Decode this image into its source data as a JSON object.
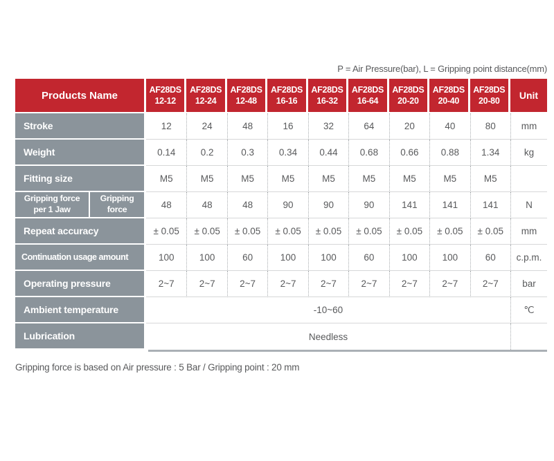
{
  "note_top": "P = Air Pressure(bar), L = Gripping point distance(mm)",
  "note_bottom": "Gripping force is based on Air pressure : 5 Bar / Gripping point : 20 mm",
  "colors": {
    "header_red": "#c2262f",
    "label_gray": "#8b949b",
    "data_text": "#58595b"
  },
  "table": {
    "header": {
      "products_label": "Products Name",
      "unit_label": "Unit",
      "products": [
        {
          "line1": "AF28DS",
          "line2": "12-12"
        },
        {
          "line1": "AF28DS",
          "line2": "12-24"
        },
        {
          "line1": "AF28DS",
          "line2": "12-48"
        },
        {
          "line1": "AF28DS",
          "line2": "16-16"
        },
        {
          "line1": "AF28DS",
          "line2": "16-32"
        },
        {
          "line1": "AF28DS",
          "line2": "16-64"
        },
        {
          "line1": "AF28DS",
          "line2": "20-20"
        },
        {
          "line1": "AF28DS",
          "line2": "20-40"
        },
        {
          "line1": "AF28DS",
          "line2": "20-80"
        }
      ]
    },
    "rows": [
      {
        "label": "Stroke",
        "values": [
          "12",
          "24",
          "48",
          "16",
          "32",
          "64",
          "20",
          "40",
          "80"
        ],
        "unit": "mm"
      },
      {
        "label": "Weight",
        "values": [
          "0.14",
          "0.2",
          "0.3",
          "0.34",
          "0.44",
          "0.68",
          "0.66",
          "0.88",
          "1.34"
        ],
        "unit": "kg"
      },
      {
        "label": "Fitting size",
        "values": [
          "M5",
          "M5",
          "M5",
          "M5",
          "M5",
          "M5",
          "M5",
          "M5",
          "M5"
        ],
        "unit": ""
      },
      {
        "label_main": {
          "line1": "Gripping force",
          "line2": "per 1 Jaw"
        },
        "label_sub": {
          "line1": "Gripping",
          "line2": "force"
        },
        "values": [
          "48",
          "48",
          "48",
          "90",
          "90",
          "90",
          "141",
          "141",
          "141"
        ],
        "unit": "N"
      },
      {
        "label": "Repeat accuracy",
        "values": [
          "± 0.05",
          "± 0.05",
          "± 0.05",
          "± 0.05",
          "± 0.05",
          "± 0.05",
          "± 0.05",
          "± 0.05",
          "± 0.05"
        ],
        "unit": "mm"
      },
      {
        "label": "Continuation usage amount",
        "values": [
          "100",
          "100",
          "60",
          "100",
          "100",
          "60",
          "100",
          "100",
          "60"
        ],
        "unit": "c.p.m."
      },
      {
        "label": "Operating pressure",
        "values": [
          "2~7",
          "2~7",
          "2~7",
          "2~7",
          "2~7",
          "2~7",
          "2~7",
          "2~7",
          "2~7"
        ],
        "unit": "bar"
      },
      {
        "label": "Ambient temperature",
        "merged_value": "-10~60",
        "unit": "℃"
      },
      {
        "label": "Lubrication",
        "merged_value": "Needless",
        "unit": ""
      }
    ]
  }
}
